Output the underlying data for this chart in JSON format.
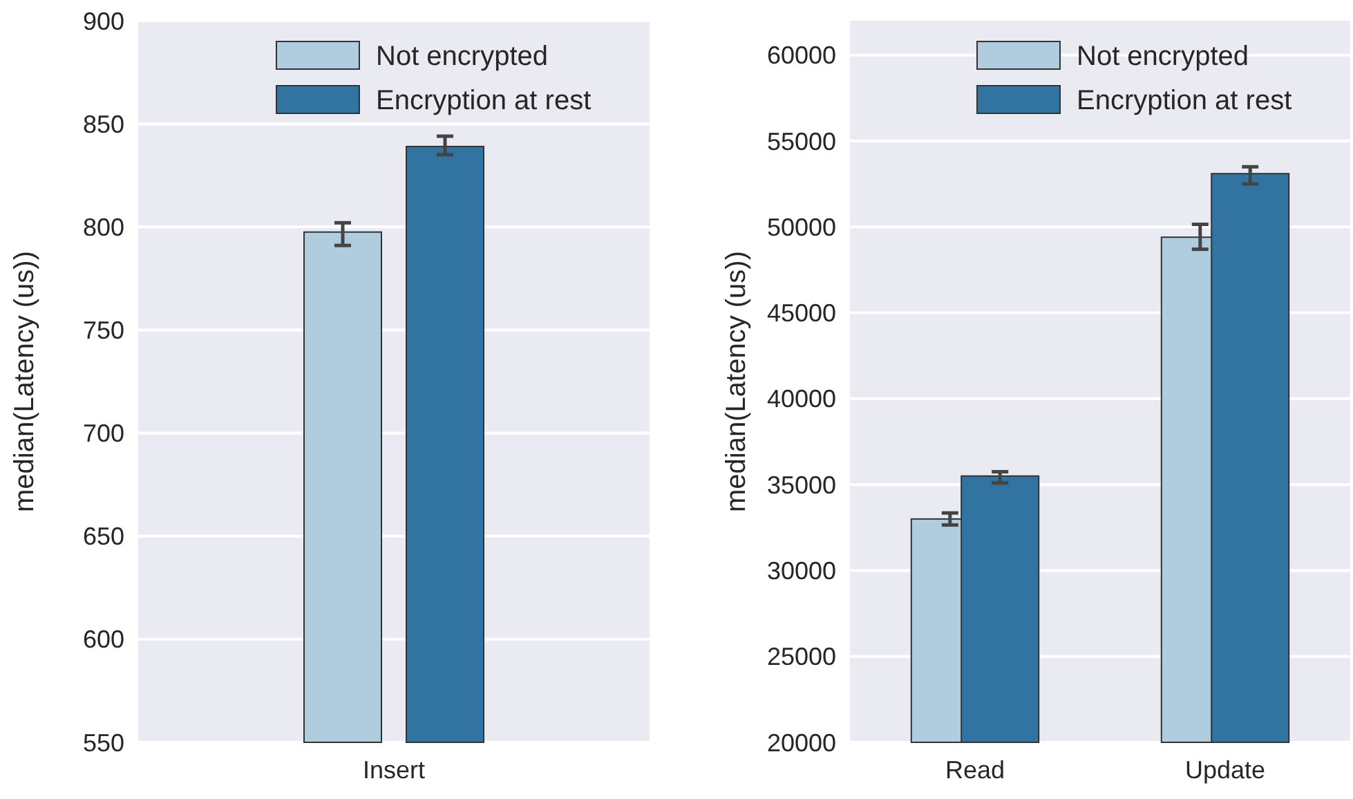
{
  "chart_data": [
    {
      "type": "bar",
      "ylabel": "median(Latency (us))",
      "categories": [
        "Insert"
      ],
      "series": [
        {
          "name": "Not encrypted",
          "color": "#b0cddf",
          "values": [
            797.5
          ],
          "errors": [
            [
              791,
              802
            ]
          ]
        },
        {
          "name": "Encryption at rest",
          "color": "#3274a1",
          "values": [
            839
          ],
          "errors": [
            [
              835,
              844
            ]
          ]
        }
      ],
      "ylim": [
        550,
        900
      ],
      "yticks": [
        550,
        600,
        650,
        700,
        750,
        800,
        850,
        900
      ],
      "grid": "y",
      "legend": "top right"
    },
    {
      "type": "bar",
      "ylabel": "median(Latency (us))",
      "categories": [
        "Read",
        "Update"
      ],
      "series": [
        {
          "name": "Not encrypted",
          "color": "#b0cddf",
          "values": [
            33000,
            49400
          ],
          "errors": [
            [
              32650,
              33350
            ],
            [
              48700,
              50150
            ]
          ]
        },
        {
          "name": "Encryption at rest",
          "color": "#3274a1",
          "values": [
            35500,
            53100
          ],
          "errors": [
            [
              35100,
              35750
            ],
            [
              52500,
              53500
            ]
          ]
        }
      ],
      "ylim": [
        20000,
        62000
      ],
      "yticks": [
        20000,
        25000,
        30000,
        35000,
        40000,
        45000,
        50000,
        55000,
        60000
      ],
      "grid": "y",
      "legend": "top right"
    }
  ]
}
